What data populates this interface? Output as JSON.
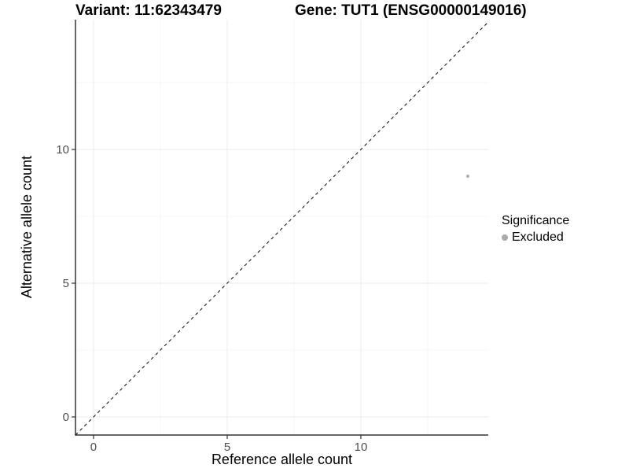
{
  "chart_data": {
    "type": "scatter",
    "titles": {
      "left": "Variant: 11:62343479",
      "right": "Gene: TUT1 (ENSG00000149016)"
    },
    "xlabel": "Reference allele count",
    "ylabel": "Alternative allele count",
    "xlim": [
      -0.676,
      14.765
    ],
    "ylim": [
      -0.676,
      14.853
    ],
    "x_ticks": [
      0,
      5,
      10
    ],
    "y_ticks": [
      0,
      5,
      10
    ],
    "minor_ticks": [
      2.5,
      7.5,
      12.5
    ],
    "grid": "major+minor on white panel",
    "points": [
      {
        "x": 14,
        "y": 9,
        "series": "Excluded"
      }
    ],
    "identity_line": {
      "slope": 1,
      "intercept": 0,
      "style": "dashed",
      "color": "#1a1a1a"
    },
    "legend": {
      "position": "right",
      "title": "Significance",
      "items": [
        {
          "label": "Excluded",
          "color": "#a9a9a9",
          "marker": "circle"
        }
      ]
    },
    "colors": {
      "background": "#ffffff",
      "point": "#b0b0b0",
      "axis_line": "#333333",
      "tick_mark": "#333333",
      "tick_label": "#4d4d4d",
      "grid_major": "#ebebeb",
      "grid_minor": "#f5f5f5"
    }
  }
}
